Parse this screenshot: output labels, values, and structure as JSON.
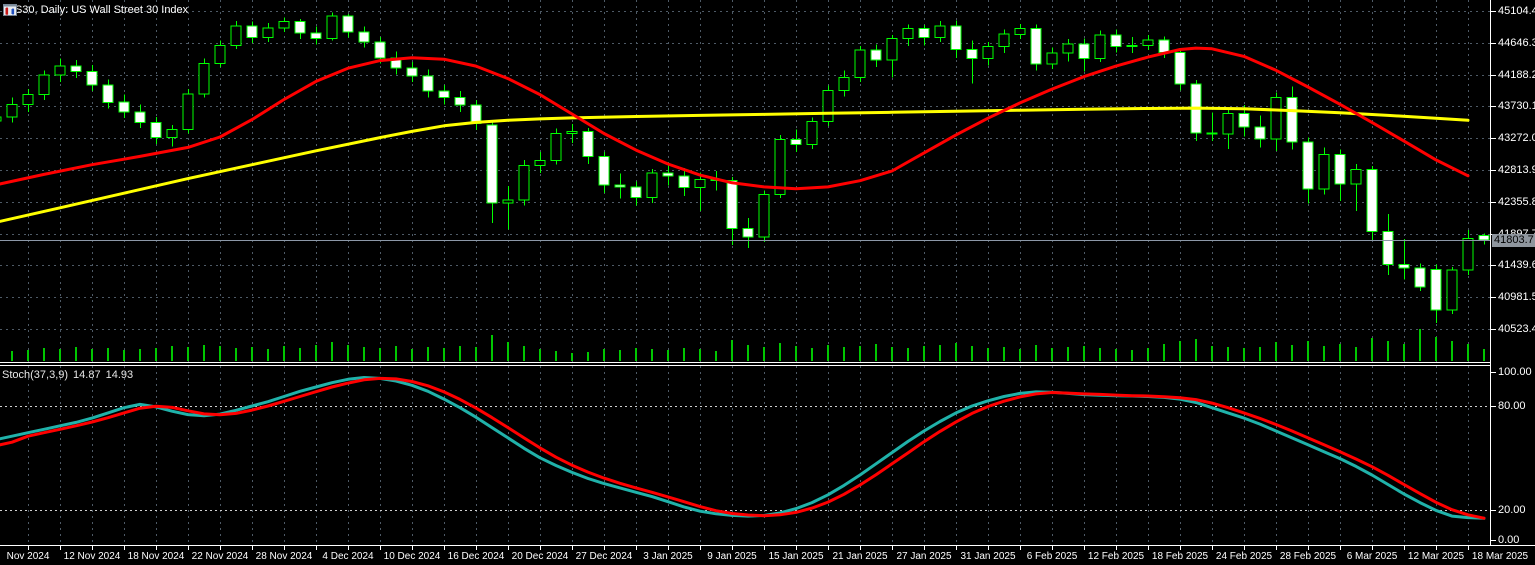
{
  "window": {
    "title": "US30, Daily: US Wall Street 30 Index"
  },
  "indicator": {
    "label": "Stoch(37,3,9)",
    "main_value": "14.87",
    "signal_value": "14.93"
  },
  "price_axis": {
    "labels": [
      "45104.4",
      "44646.3",
      "44188.2",
      "43730.1",
      "43272.0",
      "42813.9",
      "42355.8",
      "41897.7",
      "41439.6",
      "40981.5",
      "40523.4"
    ],
    "current_price_label": "41803.7",
    "current_price": 41803.7
  },
  "stoch_axis": {
    "labels": [
      "100.00",
      "80.00",
      "20.00",
      "0.00"
    ],
    "values": [
      100,
      80,
      20,
      0
    ],
    "dotted_levels": [
      80,
      20
    ]
  },
  "time_axis": {
    "labels": [
      "Nov 2024",
      "12 Nov 2024",
      "18 Nov 2024",
      "22 Nov 2024",
      "28 Nov 2024",
      "4 Dec 2024",
      "10 Dec 2024",
      "16 Dec 2024",
      "20 Dec 2024",
      "27 Dec 2024",
      "3 Jan 2025",
      "9 Jan 2025",
      "15 Jan 2025",
      "21 Jan 2025",
      "27 Jan 2025",
      "31 Jan 2025",
      "6 Feb 2025",
      "12 Feb 2025",
      "18 Feb 2025",
      "24 Feb 2025",
      "28 Feb 2025",
      "6 Mar 2025",
      "12 Mar 2025",
      "18 Mar 2025"
    ]
  },
  "colors": {
    "background": "#000000",
    "foreground": "#ffffff",
    "grid": "#4e5a66",
    "candle_outline": "#00ff00",
    "bull_fill": "#000000",
    "bear_fill": "#ffffff",
    "volume": "#00c800",
    "ma_fast": "#ff0000",
    "ma_slow": "#ffff00",
    "stoch_main": "#20b2aa",
    "stoch_signal": "#ff0000",
    "bid_line": "#8c98a8",
    "level_dotted": "#d0d0d0",
    "badge_bg": "#8f969e"
  },
  "chart_data": {
    "type": "candlestick",
    "symbol": "US30",
    "timeframe": "Daily",
    "description": "US Wall Street 30 Index, Nov 2024 - 18 Mar 2025, with red fast MA, yellow slow MA, volume, and Stochastic(37,3,9) sub-panel",
    "price_axis_top": 45104.4,
    "price_axis_step": 458.1,
    "visible_range": [
      40523.4,
      45104.4
    ],
    "current_price": 41803.7,
    "candles_ohlc": [
      [
        43520,
        43800,
        43400,
        43580
      ],
      [
        43580,
        43860,
        43500,
        43760
      ],
      [
        43760,
        43980,
        43650,
        43900
      ],
      [
        43900,
        44250,
        43820,
        44180
      ],
      [
        44180,
        44420,
        44080,
        44310
      ],
      [
        44310,
        44400,
        44140,
        44230
      ],
      [
        44230,
        44330,
        43950,
        44040
      ],
      [
        44040,
        44120,
        43700,
        43790
      ],
      [
        43790,
        43900,
        43560,
        43650
      ],
      [
        43650,
        43760,
        43420,
        43500
      ],
      [
        43500,
        43580,
        43190,
        43280
      ],
      [
        43280,
        43460,
        43150,
        43400
      ],
      [
        43400,
        43980,
        43340,
        43910
      ],
      [
        43910,
        44420,
        43860,
        44350
      ],
      [
        44350,
        44680,
        44300,
        44610
      ],
      [
        44610,
        44960,
        44560,
        44890
      ],
      [
        44890,
        44950,
        44640,
        44720
      ],
      [
        44720,
        44930,
        44660,
        44860
      ],
      [
        44860,
        45010,
        44800,
        44950
      ],
      [
        44950,
        44990,
        44700,
        44790
      ],
      [
        44790,
        44880,
        44620,
        44710
      ],
      [
        44710,
        45080,
        44680,
        45030
      ],
      [
        45030,
        45060,
        44720,
        44800
      ],
      [
        44800,
        44880,
        44580,
        44660
      ],
      [
        44660,
        44730,
        44350,
        44430
      ],
      [
        44430,
        44520,
        44190,
        44280
      ],
      [
        44280,
        44370,
        44080,
        44170
      ],
      [
        44170,
        44260,
        43860,
        43950
      ],
      [
        43950,
        44040,
        43760,
        43860
      ],
      [
        43860,
        43950,
        43650,
        43750
      ],
      [
        43750,
        43820,
        43390,
        43480
      ],
      [
        43460,
        43520,
        42050,
        42340
      ],
      [
        42340,
        42580,
        41960,
        42380
      ],
      [
        42380,
        42960,
        42300,
        42880
      ],
      [
        42880,
        43070,
        42770,
        42950
      ],
      [
        42950,
        43410,
        42890,
        43340
      ],
      [
        43340,
        43480,
        43200,
        43370
      ],
      [
        43370,
        43420,
        42900,
        43010
      ],
      [
        43010,
        43070,
        42480,
        42600
      ],
      [
        42600,
        42760,
        42400,
        42570
      ],
      [
        42570,
        42650,
        42300,
        42420
      ],
      [
        42420,
        42830,
        42340,
        42770
      ],
      [
        42770,
        42920,
        42590,
        42730
      ],
      [
        42730,
        42840,
        42440,
        42560
      ],
      [
        42560,
        42780,
        42220,
        42680
      ],
      [
        42680,
        42800,
        42520,
        42660
      ],
      [
        42660,
        42710,
        41730,
        41970
      ],
      [
        41970,
        42120,
        41690,
        41850
      ],
      [
        41850,
        42520,
        41780,
        42460
      ],
      [
        42460,
        43320,
        42410,
        43250
      ],
      [
        43250,
        43400,
        43070,
        43180
      ],
      [
        43180,
        43570,
        43120,
        43510
      ],
      [
        43510,
        44030,
        43450,
        43960
      ],
      [
        43960,
        44250,
        43870,
        44150
      ],
      [
        44150,
        44600,
        44080,
        44540
      ],
      [
        44540,
        44620,
        44300,
        44400
      ],
      [
        44400,
        44760,
        44150,
        44710
      ],
      [
        44710,
        44910,
        44600,
        44850
      ],
      [
        44850,
        44900,
        44610,
        44720
      ],
      [
        44720,
        44960,
        44660,
        44890
      ],
      [
        44890,
        44970,
        44430,
        44550
      ],
      [
        44550,
        44680,
        44060,
        44420
      ],
      [
        44420,
        44660,
        44320,
        44590
      ],
      [
        44590,
        44840,
        44500,
        44770
      ],
      [
        44770,
        44920,
        44700,
        44850
      ],
      [
        44850,
        44910,
        44250,
        44340
      ],
      [
        44340,
        44580,
        44270,
        44500
      ],
      [
        44500,
        44700,
        44380,
        44630
      ],
      [
        44630,
        44710,
        44230,
        44420
      ],
      [
        44420,
        44820,
        44370,
        44760
      ],
      [
        44760,
        44840,
        44510,
        44590
      ],
      [
        44590,
        44730,
        44500,
        44610
      ],
      [
        44610,
        44760,
        44540,
        44690
      ],
      [
        44690,
        44740,
        44430,
        44510
      ],
      [
        44510,
        44570,
        43960,
        44050
      ],
      [
        44050,
        44110,
        43230,
        43350
      ],
      [
        43350,
        43640,
        43230,
        43330
      ],
      [
        43330,
        43710,
        43120,
        43630
      ],
      [
        43630,
        43750,
        43300,
        43430
      ],
      [
        43430,
        43600,
        43140,
        43260
      ],
      [
        43260,
        43930,
        43090,
        43860
      ],
      [
        43860,
        44020,
        43110,
        43220
      ],
      [
        43220,
        43280,
        42330,
        42540
      ],
      [
        42540,
        43140,
        42460,
        43040
      ],
      [
        43040,
        43110,
        42370,
        42610
      ],
      [
        42610,
        42900,
        42220,
        42820
      ],
      [
        42820,
        42870,
        41790,
        41930
      ],
      [
        41930,
        42180,
        41300,
        41450
      ],
      [
        41450,
        41820,
        41240,
        41400
      ],
      [
        41400,
        41470,
        41070,
        41130
      ],
      [
        41380,
        41450,
        40610,
        40800
      ],
      [
        40800,
        41420,
        40740,
        41370
      ],
      [
        41370,
        41950,
        41300,
        41830
      ],
      [
        41870,
        41900,
        41740,
        41803.7
      ]
    ],
    "volume": [
      12,
      10,
      11,
      13,
      12,
      14,
      12,
      13,
      11,
      12,
      13,
      15,
      14,
      16,
      15,
      13,
      14,
      12,
      15,
      13,
      16,
      19,
      16,
      14,
      13,
      15,
      12,
      14,
      13,
      15,
      14,
      26,
      19,
      15,
      12,
      10,
      8,
      9,
      12,
      11,
      13,
      12,
      11,
      13,
      12,
      10,
      21,
      16,
      14,
      18,
      15,
      13,
      16,
      14,
      15,
      17,
      14,
      13,
      15,
      16,
      18,
      15,
      13,
      14,
      12,
      16,
      13,
      14,
      15,
      13,
      12,
      11,
      13,
      17,
      20,
      22,
      15,
      14,
      13,
      14,
      19,
      16,
      20,
      15,
      17,
      14,
      23,
      20,
      17,
      32,
      24,
      20,
      17,
      12
    ],
    "ma_fast_red": [
      [
        0,
        42600
      ],
      [
        3,
        42750
      ],
      [
        6,
        42890
      ],
      [
        9,
        43010
      ],
      [
        12,
        43140
      ],
      [
        14,
        43290
      ],
      [
        16,
        43540
      ],
      [
        18,
        43830
      ],
      [
        20,
        44090
      ],
      [
        22,
        44280
      ],
      [
        24,
        44390
      ],
      [
        26,
        44430
      ],
      [
        28,
        44410
      ],
      [
        30,
        44310
      ],
      [
        32,
        44130
      ],
      [
        34,
        43900
      ],
      [
        36,
        43620
      ],
      [
        38,
        43340
      ],
      [
        40,
        43100
      ],
      [
        42,
        42900
      ],
      [
        44,
        42740
      ],
      [
        46,
        42630
      ],
      [
        48,
        42570
      ],
      [
        50,
        42545
      ],
      [
        52,
        42570
      ],
      [
        54,
        42660
      ],
      [
        56,
        42800
      ],
      [
        58,
        43060
      ],
      [
        60,
        43320
      ],
      [
        62,
        43560
      ],
      [
        64,
        43780
      ],
      [
        66,
        43980
      ],
      [
        68,
        44160
      ],
      [
        70,
        44310
      ],
      [
        72,
        44440
      ],
      [
        74,
        44550
      ],
      [
        75,
        44570
      ],
      [
        76,
        44560
      ],
      [
        78,
        44450
      ],
      [
        80,
        44250
      ],
      [
        82,
        44010
      ],
      [
        84,
        43760
      ],
      [
        86,
        43500
      ],
      [
        88,
        43230
      ],
      [
        90,
        42960
      ],
      [
        92,
        42730
      ]
    ],
    "ma_slow_yellow": [
      [
        0,
        42060
      ],
      [
        4,
        42270
      ],
      [
        8,
        42480
      ],
      [
        12,
        42690
      ],
      [
        16,
        42890
      ],
      [
        20,
        43090
      ],
      [
        24,
        43280
      ],
      [
        26,
        43370
      ],
      [
        28,
        43450
      ],
      [
        30,
        43500
      ],
      [
        32,
        43530
      ],
      [
        34,
        43550
      ],
      [
        36,
        43565
      ],
      [
        40,
        43585
      ],
      [
        44,
        43600
      ],
      [
        48,
        43615
      ],
      [
        52,
        43630
      ],
      [
        56,
        43645
      ],
      [
        60,
        43660
      ],
      [
        64,
        43675
      ],
      [
        68,
        43690
      ],
      [
        72,
        43700
      ],
      [
        75,
        43705
      ],
      [
        78,
        43695
      ],
      [
        81,
        43670
      ],
      [
        84,
        43640
      ],
      [
        87,
        43600
      ],
      [
        90,
        43560
      ],
      [
        92,
        43530
      ]
    ],
    "stochastic": {
      "params": [
        37,
        3,
        9
      ],
      "range": [
        0,
        100
      ],
      "levels": [
        80,
        20
      ],
      "main": [
        60.5,
        62.5,
        64.5,
        66.5,
        68.5,
        70.5,
        73,
        76,
        79,
        81,
        79.5,
        77,
        75,
        74.3,
        75.3,
        77.5,
        80,
        82.5,
        85.5,
        88.5,
        91,
        93.5,
        95.5,
        96.5,
        96,
        94.5,
        92,
        88.5,
        84,
        79,
        73.5,
        67.5,
        61.5,
        55.5,
        50,
        45.5,
        41.5,
        38,
        35,
        32.5,
        30,
        27.5,
        24.5,
        21.5,
        19,
        17.5,
        16.6,
        16.2,
        16.5,
        18,
        20.5,
        24,
        28.5,
        34,
        40,
        46.5,
        53,
        59.5,
        65.5,
        71,
        76,
        80,
        83,
        85.5,
        87.3,
        88.2,
        88,
        87.3,
        86.6,
        86.2,
        86,
        85.8,
        85.5,
        85,
        84,
        82,
        79,
        76,
        73,
        69.5,
        65.5,
        61.5,
        57.5,
        53.5,
        49.5,
        45,
        40,
        34.5,
        29,
        24,
        19.5,
        16.2,
        15.3,
        14.87
      ],
      "signal": [
        57,
        59,
        62.5,
        64.5,
        66.5,
        68.5,
        70.7,
        73.2,
        76,
        78.7,
        79.8,
        79.2,
        77.2,
        75.4,
        74.9,
        75.7,
        77.6,
        80,
        82.7,
        85.5,
        88.3,
        91,
        93.3,
        95.2,
        96,
        95.7,
        94.2,
        91.7,
        88.2,
        83.8,
        78.8,
        73.3,
        67.5,
        61.5,
        55.7,
        50.3,
        45.7,
        41.7,
        38.2,
        35.2,
        32.5,
        30,
        27.3,
        24.5,
        21.7,
        19.3,
        17.7,
        16.8,
        16.4,
        16.9,
        18.3,
        20.8,
        24.3,
        28.8,
        34.2,
        40.2,
        46.5,
        52.8,
        59.3,
        65.3,
        70.8,
        75.7,
        79.7,
        82.8,
        85.3,
        87,
        87.8,
        87.5,
        87,
        86.7,
        86.3,
        86,
        85.8,
        85.4,
        84.8,
        83.7,
        81.7,
        79,
        76,
        72.8,
        69.3,
        65.5,
        61.5,
        57.5,
        53.5,
        49.3,
        44.8,
        39.8,
        34.5,
        29.2,
        24.2,
        19.9,
        16.9,
        14.93
      ]
    }
  }
}
